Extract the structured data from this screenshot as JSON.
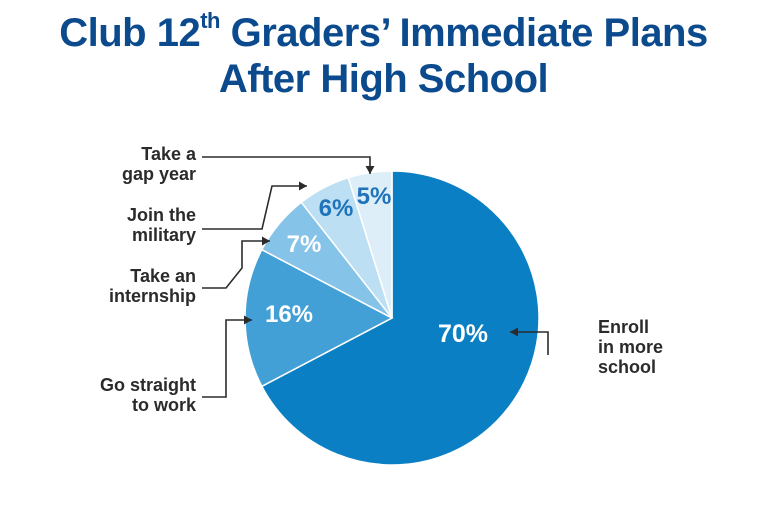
{
  "chart_data": {
    "type": "pie",
    "title_main": "Club 12",
    "title_sup": "th",
    "title_rest": " Graders’ Immediate Plans",
    "title_line2": "After High School",
    "slices": [
      {
        "label_lines": [
          "Enroll",
          "in more",
          "school"
        ],
        "value": 70,
        "value_label": "70%",
        "color": "#0a7fc4"
      },
      {
        "label_lines": [
          "Go straight",
          "to work"
        ],
        "value": 16,
        "value_label": "16%",
        "color": "#42a0d6"
      },
      {
        "label_lines": [
          "Take an",
          "internship"
        ],
        "value": 7,
        "value_label": "7%",
        "color": "#86c3e8"
      },
      {
        "label_lines": [
          "Join the",
          "military"
        ],
        "value": 6,
        "value_label": "6%",
        "color": "#bddff3"
      },
      {
        "label_lines": [
          "Take a",
          "gap year"
        ],
        "value": 5,
        "value_label": "5%",
        "color": "#ddeef9"
      }
    ]
  }
}
